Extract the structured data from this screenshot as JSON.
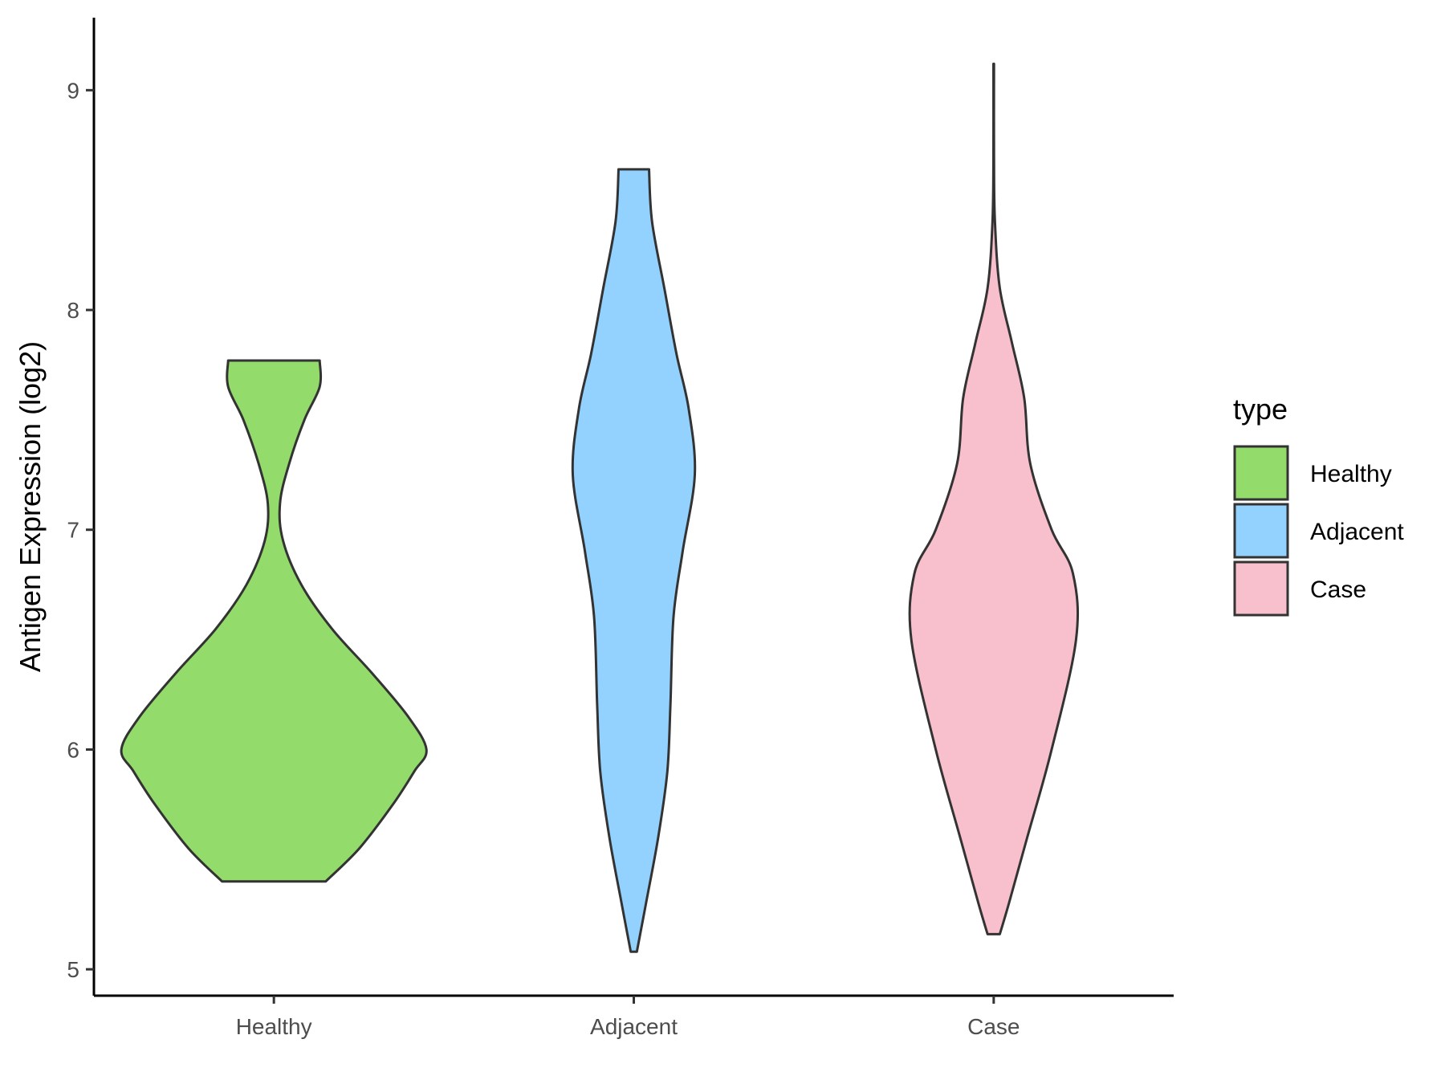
{
  "chart_data": {
    "type": "violin",
    "title": "",
    "xlabel": "",
    "ylabel": "Antigen Expression (log2)",
    "ylim": [
      4.88,
      9.33
    ],
    "yticks": [
      5,
      6,
      7,
      8,
      9
    ],
    "categories": [
      "Healthy",
      "Adjacent",
      "Case"
    ],
    "grid": false,
    "legend": {
      "title": "type",
      "placement": "right",
      "entries": [
        "Healthy",
        "Adjacent",
        "Case"
      ]
    },
    "series": [
      {
        "name": "Healthy",
        "color": "#93DB6A",
        "min": 5.4,
        "max": 7.77,
        "profile": [
          [
            5.4,
            0.17
          ],
          [
            5.55,
            0.28
          ],
          [
            5.75,
            0.39
          ],
          [
            5.9,
            0.46
          ],
          [
            6.0,
            0.5
          ],
          [
            6.15,
            0.44
          ],
          [
            6.35,
            0.32
          ],
          [
            6.55,
            0.19
          ],
          [
            6.75,
            0.09
          ],
          [
            6.95,
            0.03
          ],
          [
            7.12,
            0.02
          ],
          [
            7.3,
            0.05
          ],
          [
            7.5,
            0.1
          ],
          [
            7.65,
            0.15
          ],
          [
            7.77,
            0.15
          ]
        ]
      },
      {
        "name": "Adjacent",
        "color": "#93D2FF",
        "min": 5.08,
        "max": 8.64,
        "profile": [
          [
            5.08,
            0.01
          ],
          [
            5.3,
            0.04
          ],
          [
            5.6,
            0.08
          ],
          [
            5.9,
            0.11
          ],
          [
            6.2,
            0.12
          ],
          [
            6.6,
            0.13
          ],
          [
            6.9,
            0.16
          ],
          [
            7.25,
            0.2
          ],
          [
            7.55,
            0.18
          ],
          [
            7.8,
            0.14
          ],
          [
            8.1,
            0.1
          ],
          [
            8.4,
            0.06
          ],
          [
            8.64,
            0.05
          ]
        ]
      },
      {
        "name": "Case",
        "color": "#F8C0CC",
        "min": 5.16,
        "max": 9.12,
        "profile": [
          [
            5.16,
            0.02
          ],
          [
            5.3,
            0.05
          ],
          [
            5.6,
            0.11
          ],
          [
            6.0,
            0.19
          ],
          [
            6.5,
            0.27
          ],
          [
            6.8,
            0.26
          ],
          [
            7.0,
            0.19
          ],
          [
            7.3,
            0.12
          ],
          [
            7.6,
            0.1
          ],
          [
            7.85,
            0.06
          ],
          [
            8.1,
            0.02
          ],
          [
            8.4,
            0.004
          ],
          [
            8.7,
            0.001
          ],
          [
            9.12,
            0.001
          ]
        ]
      }
    ]
  }
}
